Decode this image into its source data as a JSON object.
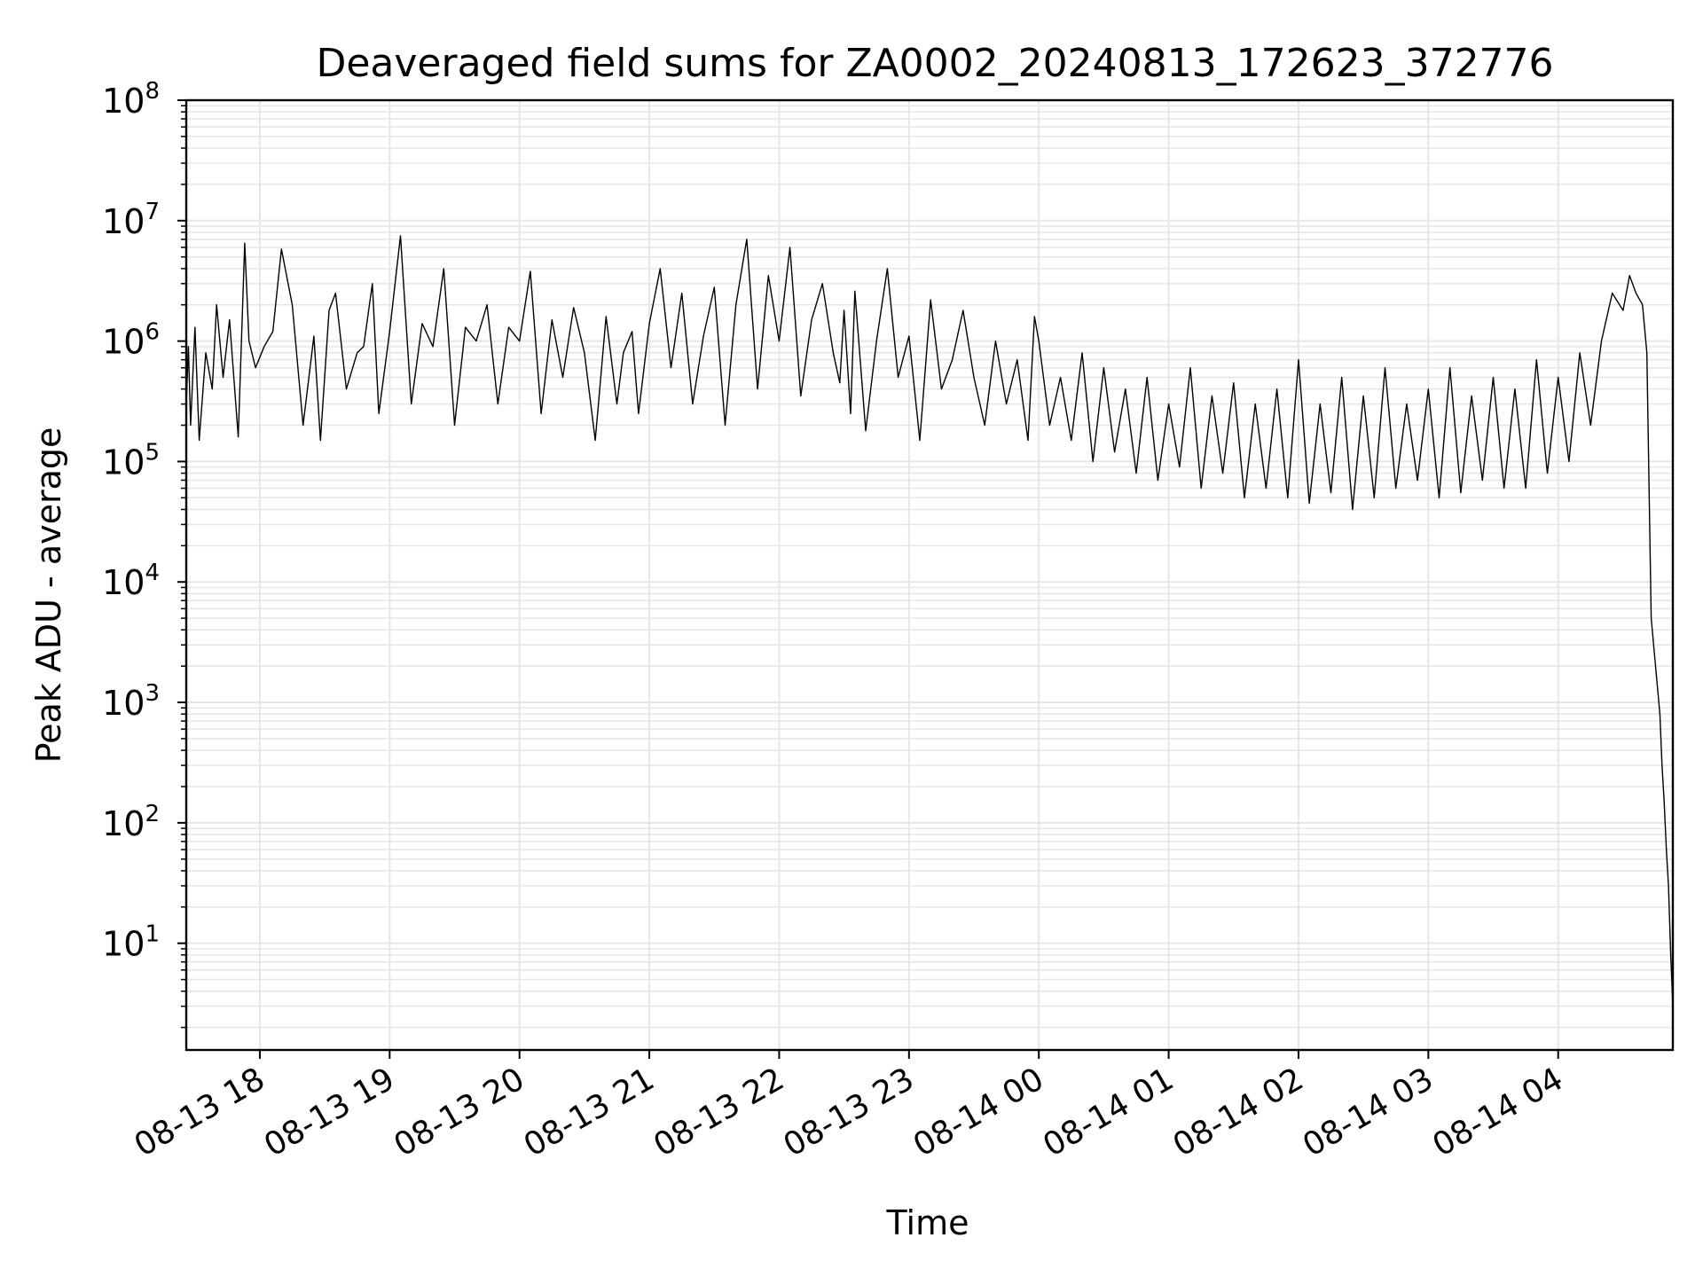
{
  "chart_data": {
    "type": "line",
    "title": "Deaveraged field sums for ZA0002_20240813_172623_372776",
    "xlabel": "Time",
    "ylabel": "Peak ADU - average",
    "x_scale": "time",
    "y_scale": "log",
    "xlim": [
      "2024-08-13 17:26",
      "2024-08-14 04:53"
    ],
    "ylim": [
      1.3,
      100000000
    ],
    "x_ticks": [
      {
        "value": "2024-08-13 18:00",
        "label": "08-13 18"
      },
      {
        "value": "2024-08-13 19:00",
        "label": "08-13 19"
      },
      {
        "value": "2024-08-13 20:00",
        "label": "08-13 20"
      },
      {
        "value": "2024-08-13 21:00",
        "label": "08-13 21"
      },
      {
        "value": "2024-08-13 22:00",
        "label": "08-13 22"
      },
      {
        "value": "2024-08-13 23:00",
        "label": "08-13 23"
      },
      {
        "value": "2024-08-14 00:00",
        "label": "08-14 00"
      },
      {
        "value": "2024-08-14 01:00",
        "label": "08-14 01"
      },
      {
        "value": "2024-08-14 02:00",
        "label": "08-14 02"
      },
      {
        "value": "2024-08-14 03:00",
        "label": "08-14 03"
      },
      {
        "value": "2024-08-14 04:00",
        "label": "08-14 04"
      }
    ],
    "y_ticks": [
      {
        "value": 10,
        "exponent": "1"
      },
      {
        "value": 100,
        "exponent": "2"
      },
      {
        "value": 1000,
        "exponent": "3"
      },
      {
        "value": 10000,
        "exponent": "4"
      },
      {
        "value": 100000,
        "exponent": "5"
      },
      {
        "value": 1000000,
        "exponent": "6"
      },
      {
        "value": 10000000,
        "exponent": "7"
      },
      {
        "value": 100000000,
        "exponent": "8"
      }
    ],
    "grid": true,
    "grid_color": "#e6e6e6",
    "line_color": "#000000",
    "series": [
      {
        "x": [
          "2024-08-13 17:26",
          "2024-08-13 17:27",
          "2024-08-13 17:28",
          "2024-08-13 17:30",
          "2024-08-13 17:32",
          "2024-08-13 17:35",
          "2024-08-13 17:38",
          "2024-08-13 17:40",
          "2024-08-13 17:43",
          "2024-08-13 17:46",
          "2024-08-13 17:50",
          "2024-08-13 17:53",
          "2024-08-13 17:55",
          "2024-08-13 17:58",
          "2024-08-13 18:02",
          "2024-08-13 18:06",
          "2024-08-13 18:10",
          "2024-08-13 18:15",
          "2024-08-13 18:20",
          "2024-08-13 18:25",
          "2024-08-13 18:28",
          "2024-08-13 18:32",
          "2024-08-13 18:35",
          "2024-08-13 18:40",
          "2024-08-13 18:45",
          "2024-08-13 18:48",
          "2024-08-13 18:52",
          "2024-08-13 18:55",
          "2024-08-13 19:00",
          "2024-08-13 19:05",
          "2024-08-13 19:10",
          "2024-08-13 19:15",
          "2024-08-13 19:20",
          "2024-08-13 19:25",
          "2024-08-13 19:30",
          "2024-08-13 19:35",
          "2024-08-13 19:40",
          "2024-08-13 19:45",
          "2024-08-13 19:50",
          "2024-08-13 19:55",
          "2024-08-13 20:00",
          "2024-08-13 20:05",
          "2024-08-13 20:10",
          "2024-08-13 20:15",
          "2024-08-13 20:20",
          "2024-08-13 20:25",
          "2024-08-13 20:30",
          "2024-08-13 20:35",
          "2024-08-13 20:40",
          "2024-08-13 20:45",
          "2024-08-13 20:48",
          "2024-08-13 20:52",
          "2024-08-13 20:55",
          "2024-08-13 21:00",
          "2024-08-13 21:05",
          "2024-08-13 21:10",
          "2024-08-13 21:15",
          "2024-08-13 21:20",
          "2024-08-13 21:25",
          "2024-08-13 21:30",
          "2024-08-13 21:35",
          "2024-08-13 21:40",
          "2024-08-13 21:45",
          "2024-08-13 21:50",
          "2024-08-13 21:55",
          "2024-08-13 22:00",
          "2024-08-13 22:05",
          "2024-08-13 22:10",
          "2024-08-13 22:15",
          "2024-08-13 22:20",
          "2024-08-13 22:25",
          "2024-08-13 22:28",
          "2024-08-13 22:30",
          "2024-08-13 22:33",
          "2024-08-13 22:35",
          "2024-08-13 22:40",
          "2024-08-13 22:45",
          "2024-08-13 22:50",
          "2024-08-13 22:55",
          "2024-08-13 23:00",
          "2024-08-13 23:05",
          "2024-08-13 23:10",
          "2024-08-13 23:15",
          "2024-08-13 23:20",
          "2024-08-13 23:25",
          "2024-08-13 23:30",
          "2024-08-13 23:35",
          "2024-08-13 23:40",
          "2024-08-13 23:45",
          "2024-08-13 23:50",
          "2024-08-13 23:55",
          "2024-08-13 23:58",
          "2024-08-14 00:00",
          "2024-08-14 00:05",
          "2024-08-14 00:10",
          "2024-08-14 00:15",
          "2024-08-14 00:20",
          "2024-08-14 00:25",
          "2024-08-14 00:30",
          "2024-08-14 00:35",
          "2024-08-14 00:40",
          "2024-08-14 00:45",
          "2024-08-14 00:50",
          "2024-08-14 00:55",
          "2024-08-14 01:00",
          "2024-08-14 01:05",
          "2024-08-14 01:10",
          "2024-08-14 01:15",
          "2024-08-14 01:20",
          "2024-08-14 01:25",
          "2024-08-14 01:30",
          "2024-08-14 01:35",
          "2024-08-14 01:40",
          "2024-08-14 01:45",
          "2024-08-14 01:50",
          "2024-08-14 01:55",
          "2024-08-14 02:00",
          "2024-08-14 02:05",
          "2024-08-14 02:10",
          "2024-08-14 02:15",
          "2024-08-14 02:20",
          "2024-08-14 02:25",
          "2024-08-14 02:30",
          "2024-08-14 02:35",
          "2024-08-14 02:40",
          "2024-08-14 02:45",
          "2024-08-14 02:50",
          "2024-08-14 02:55",
          "2024-08-14 03:00",
          "2024-08-14 03:05",
          "2024-08-14 03:10",
          "2024-08-14 03:15",
          "2024-08-14 03:20",
          "2024-08-14 03:25",
          "2024-08-14 03:30",
          "2024-08-14 03:35",
          "2024-08-14 03:40",
          "2024-08-14 03:45",
          "2024-08-14 03:50",
          "2024-08-14 03:55",
          "2024-08-14 04:00",
          "2024-08-14 04:05",
          "2024-08-14 04:10",
          "2024-08-14 04:15",
          "2024-08-14 04:20",
          "2024-08-14 04:25",
          "2024-08-14 04:30",
          "2024-08-14 04:33",
          "2024-08-14 04:36",
          "2024-08-14 04:39",
          "2024-08-14 04:41",
          "2024-08-14 04:43",
          "2024-08-14 04:45",
          "2024-08-14 04:47",
          "2024-08-14 04:48",
          "2024-08-14 04:49",
          "2024-08-14 04:50",
          "2024-08-14 04:51",
          "2024-08-14 04:52",
          "2024-08-14 04:53"
        ],
        "y": [
          300000,
          900000,
          200000,
          1300000,
          150000,
          800000,
          400000,
          2000000,
          500000,
          1500000,
          160000,
          6500000,
          1000000,
          600000,
          900000,
          1200000,
          5800000,
          2000000,
          200000,
          1100000,
          150000,
          1800000,
          2500000,
          400000,
          800000,
          900000,
          3000000,
          250000,
          1200000,
          7500000,
          300000,
          1400000,
          900000,
          4000000,
          200000,
          1300000,
          1000000,
          2000000,
          300000,
          1300000,
          1000000,
          3800000,
          250000,
          1500000,
          500000,
          1900000,
          800000,
          150000,
          1600000,
          300000,
          800000,
          1200000,
          250000,
          1400000,
          4000000,
          600000,
          2500000,
          300000,
          1100000,
          2800000,
          200000,
          2000000,
          7000000,
          400000,
          3500000,
          1000000,
          6000000,
          350000,
          1500000,
          3000000,
          800000,
          450000,
          1800000,
          250000,
          2600000,
          180000,
          1000000,
          4000000,
          500000,
          1100000,
          150000,
          2200000,
          400000,
          700000,
          1800000,
          500000,
          200000,
          1000000,
          300000,
          700000,
          150000,
          1600000,
          1000000,
          200000,
          500000,
          150000,
          800000,
          100000,
          600000,
          120000,
          400000,
          80000,
          500000,
          70000,
          300000,
          90000,
          600000,
          60000,
          350000,
          80000,
          450000,
          50000,
          300000,
          60000,
          400000,
          50000,
          700000,
          45000,
          300000,
          55000,
          500000,
          40000,
          350000,
          50000,
          600000,
          60000,
          300000,
          70000,
          400000,
          50000,
          600000,
          55000,
          350000,
          70000,
          500000,
          60000,
          400000,
          60000,
          700000,
          80000,
          500000,
          100000,
          800000,
          200000,
          1000000,
          2500000,
          1800000,
          3500000,
          2500000,
          2000000,
          800000,
          5000,
          2000,
          800,
          300,
          150,
          60,
          30,
          8,
          3
        ]
      }
    ],
    "peak_annotation_note": ""
  }
}
